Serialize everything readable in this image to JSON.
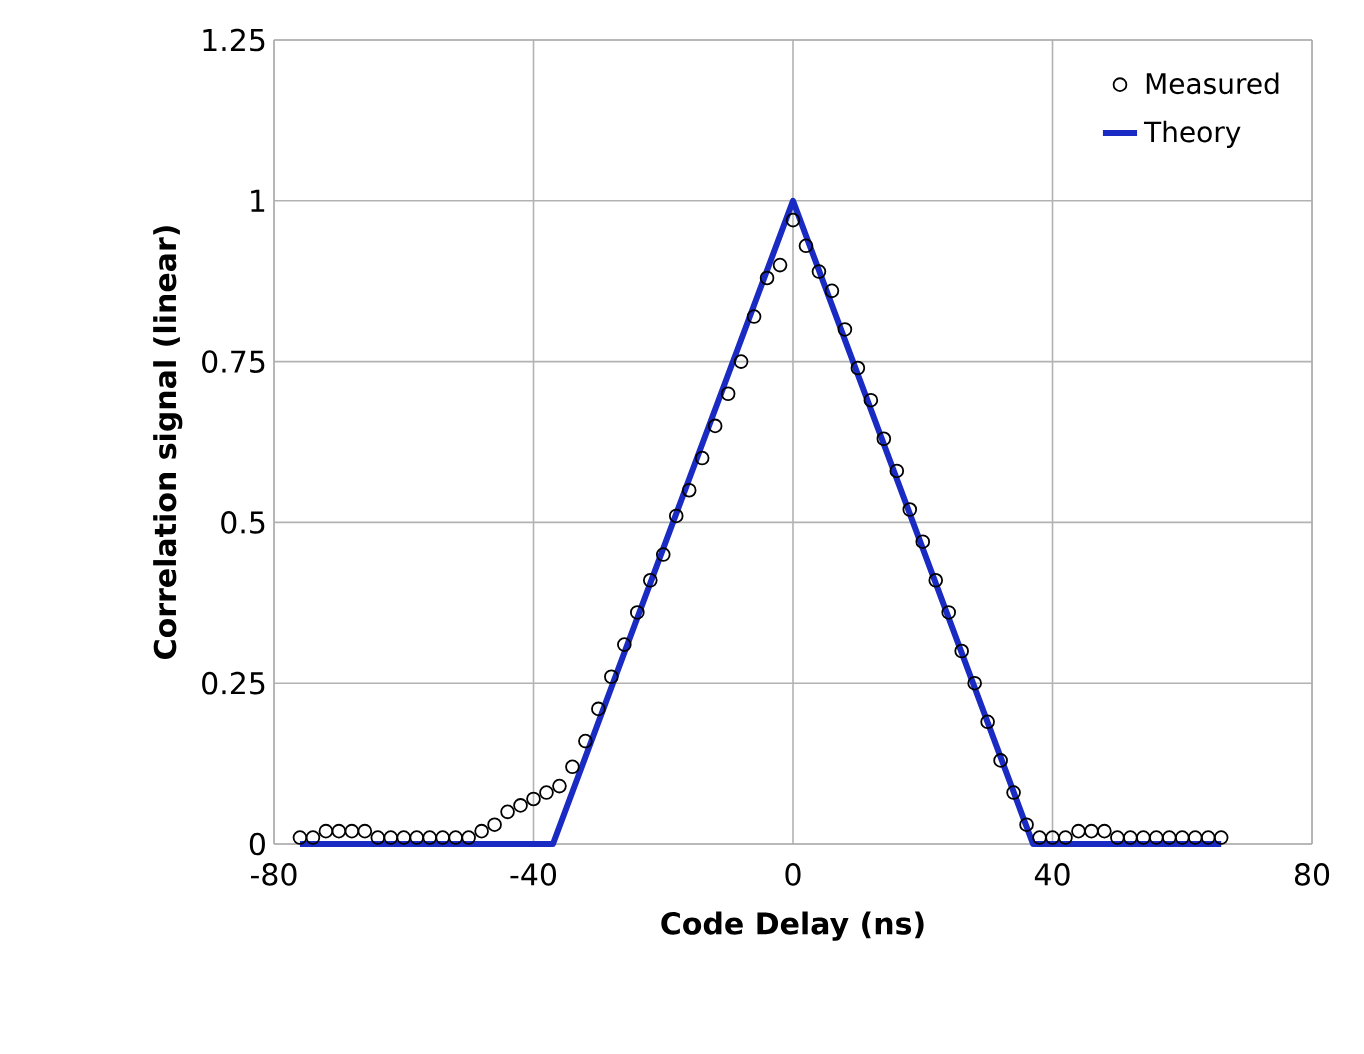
{
  "chart_data": {
    "type": "line",
    "xlabel": "Code Delay (ns)",
    "ylabel": "Correlation signal (linear)",
    "xlim": [
      -80,
      80
    ],
    "xticks": [
      -80,
      -40,
      0,
      40,
      80
    ],
    "ylim": [
      0,
      1.25
    ],
    "yticks": [
      0,
      0.25,
      0.5,
      0.75,
      1,
      1.25
    ],
    "grid": true,
    "legend": "top right",
    "series": [
      {
        "name": "Measured",
        "type": "scatter",
        "marker": "circle",
        "color": "#000000",
        "x": [
          -76,
          -74,
          -72,
          -70,
          -68,
          -66,
          -64,
          -62,
          -60,
          -58,
          -56,
          -54,
          -52,
          -50,
          -48,
          -46,
          -44,
          -42,
          -40,
          -38,
          -36,
          -34,
          -32,
          -30,
          -28,
          -26,
          -24,
          -22,
          -20,
          -18,
          -16,
          -14,
          -12,
          -10,
          -8,
          -6,
          -4,
          -2,
          0,
          2,
          4,
          6,
          8,
          10,
          12,
          14,
          16,
          18,
          20,
          22,
          24,
          26,
          28,
          30,
          32,
          34,
          36,
          38,
          40,
          42,
          44,
          46,
          48,
          50,
          52,
          54,
          56,
          58,
          60,
          62,
          64,
          66
        ],
        "values": [
          0.01,
          0.01,
          0.02,
          0.02,
          0.02,
          0.02,
          0.01,
          0.01,
          0.01,
          0.01,
          0.01,
          0.01,
          0.01,
          0.01,
          0.02,
          0.03,
          0.05,
          0.06,
          0.07,
          0.08,
          0.09,
          0.12,
          0.16,
          0.21,
          0.26,
          0.31,
          0.36,
          0.41,
          0.45,
          0.51,
          0.55,
          0.6,
          0.65,
          0.7,
          0.75,
          0.82,
          0.88,
          0.9,
          0.97,
          0.93,
          0.89,
          0.86,
          0.8,
          0.74,
          0.69,
          0.63,
          0.58,
          0.52,
          0.47,
          0.41,
          0.36,
          0.3,
          0.25,
          0.19,
          0.13,
          0.08,
          0.03,
          0.01,
          0.01,
          0.01,
          0.02,
          0.02,
          0.02,
          0.01,
          0.01,
          0.01,
          0.01,
          0.01,
          0.01,
          0.01,
          0.01,
          0.01
        ]
      },
      {
        "name": "Theory",
        "marker": "none",
        "color": "#1a2bc4",
        "x": [
          -76,
          -37,
          0,
          37,
          66
        ],
        "values": [
          0,
          0,
          1,
          0,
          0
        ]
      }
    ]
  }
}
